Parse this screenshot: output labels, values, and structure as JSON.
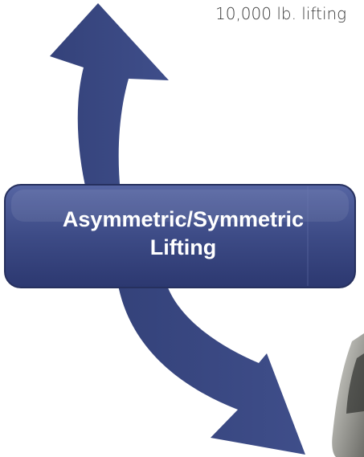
{
  "caption": "10,000 lb. lifting",
  "label": {
    "lines": [
      "Asymmetric/Symmetric",
      "Lifting"
    ]
  }
}
